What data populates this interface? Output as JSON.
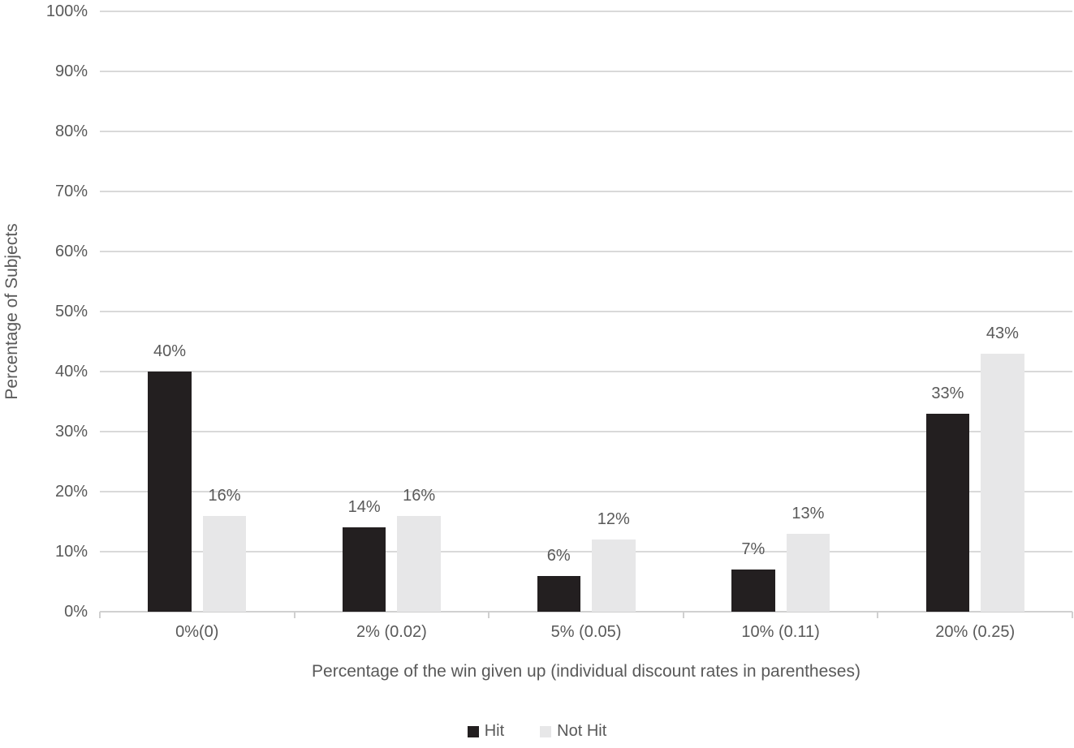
{
  "chart_data": {
    "type": "bar",
    "title": "",
    "categories": [
      "0%(0)",
      "2% (0.02)",
      "5% (0.05)",
      "10% (0.11)",
      "20% (0.25)"
    ],
    "series": [
      {
        "name": "Hit",
        "color": "#231f20",
        "values": [
          40,
          14,
          6,
          7,
          33
        ],
        "data_labels": [
          "40%",
          "14%",
          "6%",
          "7%",
          "33%"
        ]
      },
      {
        "name": "Not Hit",
        "color": "#e7e7e8",
        "values": [
          16,
          16,
          12,
          13,
          43
        ],
        "data_labels": [
          "16%",
          "16%",
          "12%",
          "13%",
          "43%"
        ]
      }
    ],
    "xlabel": "Percentage of the win given up (individual discount rates in parentheses)",
    "ylabel": "Percentage of Subjects",
    "ylim": [
      0,
      100
    ],
    "ytick_step": 10,
    "ytick_labels": [
      "0%",
      "10%",
      "20%",
      "30%",
      "40%",
      "50%",
      "60%",
      "70%",
      "80%",
      "90%",
      "100%"
    ],
    "grid": true,
    "legend_position": "bottom-center",
    "colors": {
      "text": "#595959",
      "gridline": "#d9d9d9",
      "axis_line": "#d0d0d0",
      "background": "#ffffff"
    }
  }
}
